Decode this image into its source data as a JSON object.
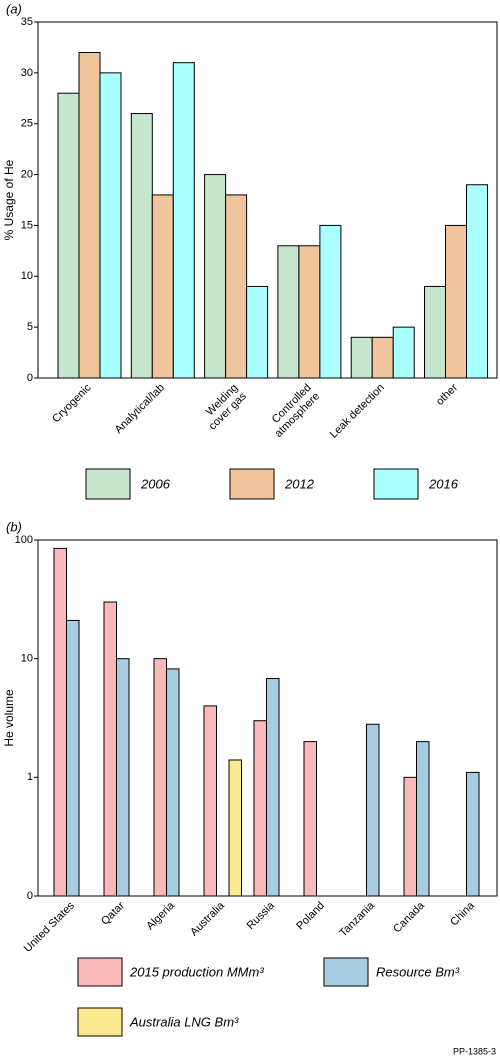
{
  "chart_data": [
    {
      "type": "bar",
      "title": "(a)",
      "ylabel": "% Usage of He",
      "categories": [
        "Cryogenic",
        "Analytical/lab",
        "Welding\ncover gas",
        "Controlled\natmosphere",
        "Leak detection",
        "other"
      ],
      "series": [
        {
          "name": "2006",
          "color": "#c6e6cd",
          "values": [
            28,
            26,
            20,
            13,
            4,
            9
          ]
        },
        {
          "name": "2012",
          "color": "#f0c49c",
          "values": [
            32,
            18,
            18,
            13,
            4,
            15
          ]
        },
        {
          "name": "2016",
          "color": "#aaffff",
          "values": [
            30,
            31,
            9,
            15,
            5,
            19
          ]
        }
      ],
      "ylim": [
        0,
        35
      ],
      "yticks": [
        0,
        5,
        10,
        15,
        20,
        25,
        30,
        35
      ],
      "yscale": "linear",
      "grid": false
    },
    {
      "type": "bar",
      "title": "(b)",
      "ylabel": "He volume",
      "categories": [
        "United States",
        "Qatar",
        "Algeria",
        "Australia",
        "Russia",
        "Poland",
        "Tanzania",
        "Canada",
        "China"
      ],
      "series": [
        {
          "name": "2015 production MMm³",
          "color": "#f9b9b9",
          "values": [
            85,
            30,
            10,
            4,
            3,
            2,
            null,
            1,
            null
          ]
        },
        {
          "name": "Resource Bm³",
          "color": "#a9cde0",
          "values": [
            21,
            10,
            8.2,
            null,
            6.8,
            null,
            2.8,
            2,
            1.1
          ]
        },
        {
          "name": "Australia LNG Bm³",
          "color": "#fbe98f",
          "values": [
            null,
            null,
            null,
            1.4,
            null,
            null,
            null,
            null,
            null
          ]
        }
      ],
      "ylim": [
        0.1,
        100
      ],
      "yticks": [
        {
          "value": 0.1,
          "label": "0"
        },
        1,
        10,
        100
      ],
      "yscale": "log",
      "grid": false,
      "note": "PP-1385-3"
    }
  ]
}
